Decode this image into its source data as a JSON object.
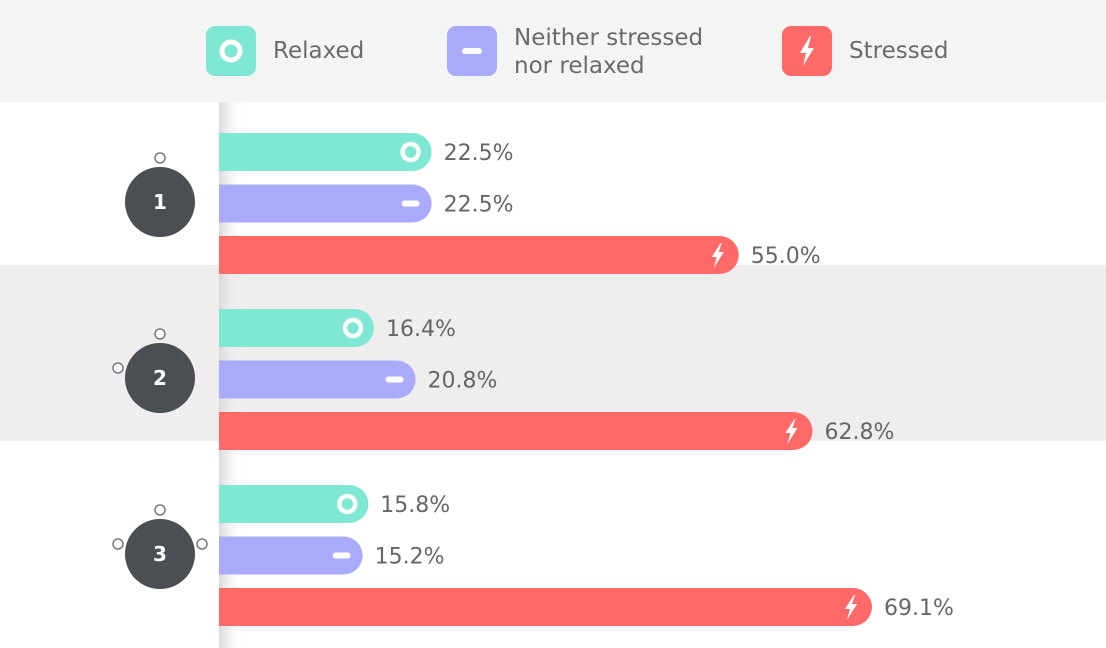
{
  "chart_data": {
    "type": "bar",
    "orientation": "horizontal",
    "categories": [
      "1",
      "2",
      "3"
    ],
    "series": [
      {
        "name": "Relaxed",
        "color": "#7fe8d4",
        "icon": "ring-icon",
        "values": [
          22.5,
          16.4,
          15.8
        ],
        "labels": [
          "22.5%",
          "16.4%",
          "15.8%"
        ]
      },
      {
        "name": "Neither stressed nor relaxed",
        "name_lines": [
          "Neither stressed",
          "nor relaxed"
        ],
        "color": "#aaaafd",
        "icon": "minus-icon",
        "values": [
          22.5,
          20.8,
          15.2
        ],
        "labels": [
          "22.5%",
          "20.8%",
          "15.2%"
        ]
      },
      {
        "name": "Stressed",
        "color": "#ff6a69",
        "icon": "lightning-icon",
        "values": [
          55.0,
          62.8,
          69.1
        ],
        "labels": [
          "55.0%",
          "62.8%",
          "69.1%"
        ]
      }
    ],
    "xlim": [
      0,
      100
    ],
    "legend_position": "top",
    "row_backgrounds": [
      "#ffffff",
      "#efeded",
      "#ffffff"
    ],
    "category_marker_color": "#4b4e52"
  }
}
